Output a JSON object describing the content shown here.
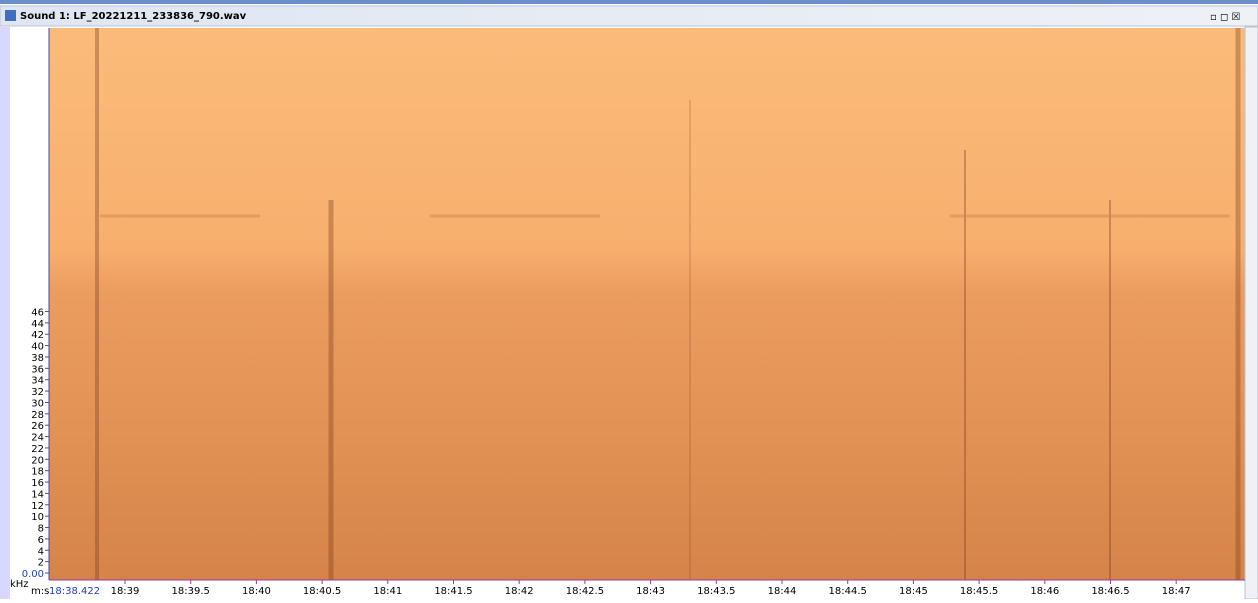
{
  "window": {
    "title": "Sound 1: LF_20221211_233836_790.wav"
  },
  "y_axis": {
    "unit": "kHz",
    "ticks": [
      "0.00",
      "2",
      "4",
      "6",
      "8",
      "10",
      "12",
      "14",
      "16",
      "18",
      "20",
      "22",
      "24",
      "26",
      "28",
      "30",
      "32",
      "34",
      "36",
      "38",
      "40",
      "42",
      "44",
      "46"
    ]
  },
  "x_axis": {
    "unit": "m:s",
    "start": "18:38.422",
    "ticks": [
      "18:39",
      "18:39.5",
      "18:40",
      "18:40.5",
      "18:41",
      "18:41.5",
      "18:42",
      "18:42.5",
      "18:43",
      "18:43.5",
      "18:44",
      "18:44.5",
      "18:45",
      "18:45.5",
      "18:46",
      "18:46.5",
      "18:47"
    ]
  }
}
